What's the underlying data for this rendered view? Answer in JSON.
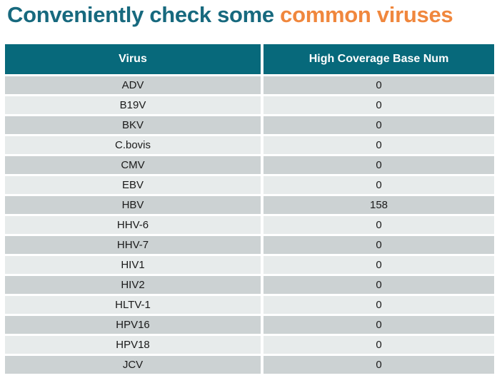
{
  "title": {
    "part1": "Conveniently check some ",
    "part2": "common viruses"
  },
  "colors": {
    "title_teal": "#17697E",
    "title_orange": "#F0873D",
    "header_bg": "#07697B",
    "header_text": "#FFFFFF",
    "row_dark": "#CCD2D3",
    "row_light": "#E7EBEB",
    "cell_text": "#1A1A1A",
    "background": "#FFFFFF"
  },
  "chart_data": {
    "type": "table",
    "title": "Conveniently check some common viruses",
    "columns": [
      "Virus",
      "High Coverage Base Num"
    ],
    "rows": [
      [
        "ADV",
        "0"
      ],
      [
        "B19V",
        "0"
      ],
      [
        "BKV",
        "0"
      ],
      [
        "C.bovis",
        "0"
      ],
      [
        "CMV",
        "0"
      ],
      [
        "EBV",
        "0"
      ],
      [
        "HBV",
        "158"
      ],
      [
        "HHV-6",
        "0"
      ],
      [
        "HHV-7",
        "0"
      ],
      [
        "HIV1",
        "0"
      ],
      [
        "HIV2",
        "0"
      ],
      [
        "HLTV-1",
        "0"
      ],
      [
        "HPV16",
        "0"
      ],
      [
        "HPV18",
        "0"
      ],
      [
        "JCV",
        "0"
      ]
    ],
    "layout": {
      "header_style": "teal band, white bold centered text",
      "row_style": "alternating gray stripes, centered text",
      "grid": "white gaps between rows and columns"
    }
  }
}
